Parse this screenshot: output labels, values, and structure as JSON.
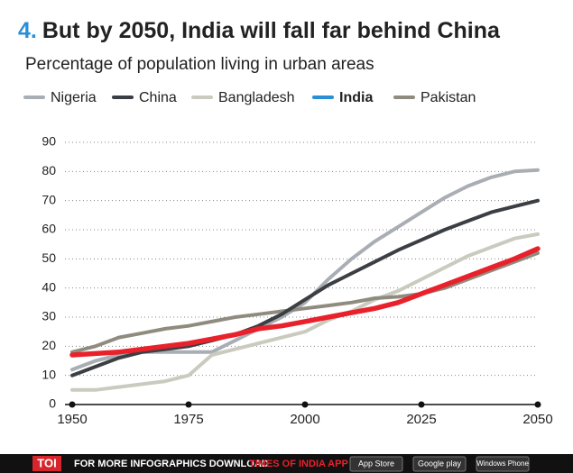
{
  "chart_data": {
    "type": "line",
    "title_number": "4.",
    "title": "But by 2050, India will fall far behind China",
    "subtitle": "Percentage of population living in urban areas",
    "x": [
      1950,
      1955,
      1960,
      1965,
      1970,
      1975,
      1980,
      1985,
      1990,
      1995,
      2000,
      2005,
      2010,
      2015,
      2020,
      2025,
      2030,
      2035,
      2040,
      2045,
      2050
    ],
    "xlim": [
      1950,
      2050
    ],
    "xticks": [
      1950,
      1975,
      2000,
      2025,
      2050
    ],
    "ylim": [
      0,
      90
    ],
    "yticks": [
      0,
      10,
      20,
      30,
      40,
      50,
      60,
      70,
      80,
      90
    ],
    "grid": true,
    "legend": "top",
    "series": [
      {
        "name": "Nigeria",
        "color": "#a9aeb4",
        "values": [
          12,
          15,
          17,
          18,
          18,
          18,
          18,
          22,
          26,
          30,
          35,
          43,
          50,
          56,
          61,
          66,
          71,
          75,
          78,
          80,
          80.5
        ]
      },
      {
        "name": "China",
        "color": "#3b3f44",
        "values": [
          10,
          13,
          16,
          18,
          19,
          20,
          22,
          24,
          27,
          31,
          36,
          41,
          45,
          49,
          53,
          56.5,
          60,
          63,
          66,
          68,
          70
        ]
      },
      {
        "name": "Bangladesh",
        "color": "#cacabf",
        "values": [
          5,
          5,
          6,
          7,
          8,
          10,
          17,
          19,
          21,
          23,
          25,
          29,
          32,
          36,
          39,
          43,
          47,
          51,
          54,
          57,
          58.5
        ]
      },
      {
        "name": "India",
        "color": "#e8212b",
        "legend_color": "#2b8fd6",
        "values": [
          17,
          17.5,
          18,
          19,
          20,
          21,
          22.5,
          24,
          26,
          27,
          28.5,
          30,
          31.5,
          33,
          35,
          38,
          41,
          44,
          47,
          50,
          53.5
        ]
      },
      {
        "name": "Pakistan",
        "color": "#8f8c7f",
        "values": [
          18,
          20,
          23,
          24.5,
          26,
          27,
          28.5,
          30,
          31,
          32,
          33,
          34,
          35,
          36.5,
          37,
          38,
          40,
          43,
          46,
          49,
          52
        ]
      }
    ]
  },
  "footer": {
    "brand": "TOI",
    "text": "FOR MORE  INFOGRAPHICS DOWNLOAD",
    "app": "TIMES OF INDIA APP",
    "badges": [
      "App Store",
      "Google play",
      "Windows Phone"
    ]
  }
}
